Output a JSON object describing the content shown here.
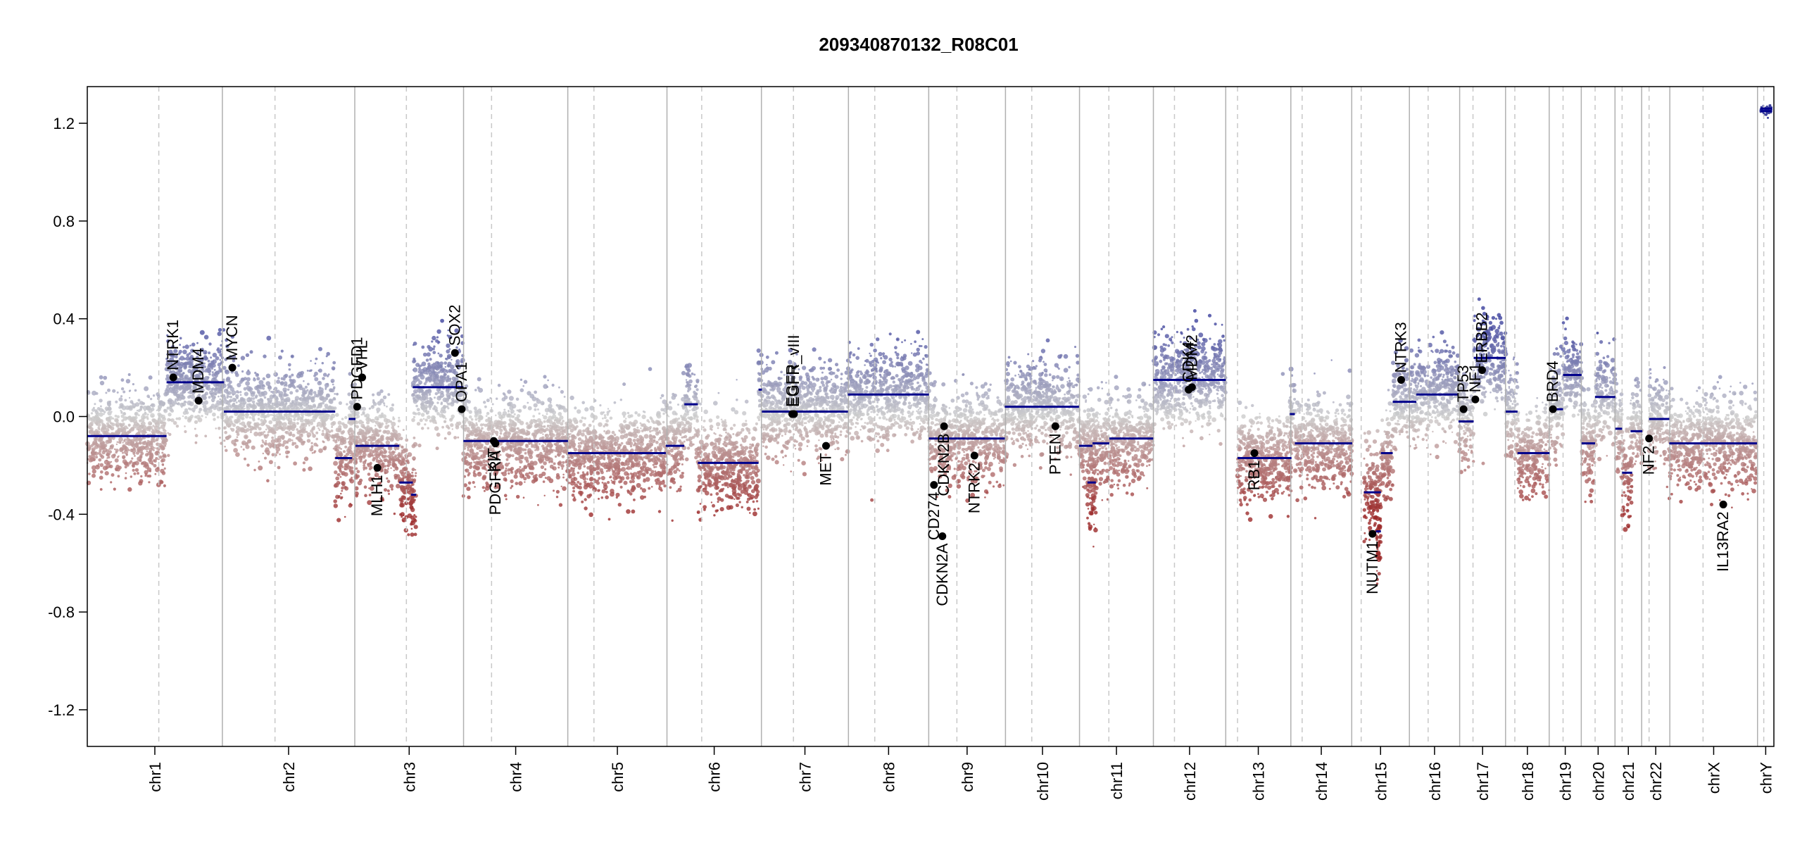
{
  "chart_data": {
    "type": "scatter",
    "title": "209340870132_R08C01",
    "xlabel": "",
    "ylabel": "",
    "ylim": [
      -1.35,
      1.35
    ],
    "yticks": [
      {
        "value": 1.2,
        "label": "1.2"
      },
      {
        "value": 0.8,
        "label": "0.8"
      },
      {
        "value": 0.4,
        "label": "0.4"
      },
      {
        "value": 0.0,
        "label": "0.0"
      },
      {
        "value": -0.4,
        "label": "-0.4"
      },
      {
        "value": -0.8,
        "label": "-0.8"
      },
      {
        "value": -1.2,
        "label": "-1.2"
      }
    ],
    "xlim": [
      0,
      1000
    ],
    "chromosomes": [
      {
        "name": "chr1",
        "start": 0,
        "end": 80.1,
        "centromere": 42.4
      },
      {
        "name": "chr2",
        "start": 80.1,
        "end": 158.6,
        "centromere": 111.3
      },
      {
        "name": "chr3",
        "start": 158.6,
        "end": 223.1,
        "centromere": 189.2
      },
      {
        "name": "chr4",
        "start": 223.1,
        "end": 284.9,
        "centromere": 239.7
      },
      {
        "name": "chr5",
        "start": 284.9,
        "end": 343.7,
        "centromere": 300.4
      },
      {
        "name": "chr6",
        "start": 343.7,
        "end": 399.7,
        "centromere": 364.3
      },
      {
        "name": "chr7",
        "start": 399.7,
        "end": 451.3,
        "centromere": 418.7
      },
      {
        "name": "chr8",
        "start": 451.3,
        "end": 498.9,
        "centromere": 466.9
      },
      {
        "name": "chr9",
        "start": 498.9,
        "end": 544.4,
        "centromere": 515.6
      },
      {
        "name": "chr10",
        "start": 544.4,
        "end": 588.3,
        "centromere": 560.0
      },
      {
        "name": "chr11",
        "start": 588.3,
        "end": 632.1,
        "centromere": 605.7
      },
      {
        "name": "chr12",
        "start": 632.1,
        "end": 675.0,
        "centromere": 644.6
      },
      {
        "name": "chr13",
        "start": 675.0,
        "end": 713.6,
        "centromere": 682.0
      },
      {
        "name": "chr14",
        "start": 713.6,
        "end": 749.7,
        "centromere": 720.3
      },
      {
        "name": "chr15",
        "start": 749.7,
        "end": 783.9,
        "centromere": 755.3
      },
      {
        "name": "chr16",
        "start": 783.9,
        "end": 813.7,
        "centromere": 795.0
      },
      {
        "name": "chr17",
        "start": 813.7,
        "end": 840.9,
        "centromere": 821.6
      },
      {
        "name": "chr18",
        "start": 840.9,
        "end": 866.8,
        "centromere": 846.4
      },
      {
        "name": "chr19",
        "start": 866.8,
        "end": 885.8,
        "centromere": 875.0
      },
      {
        "name": "chr20",
        "start": 885.8,
        "end": 905.8,
        "centromere": 894.0
      },
      {
        "name": "chr21",
        "start": 905.8,
        "end": 921.6,
        "centromere": 910.0
      },
      {
        "name": "chr22",
        "start": 921.6,
        "end": 938.3,
        "centromere": 926.0
      },
      {
        "name": "chrX",
        "start": 938.3,
        "end": 990.3,
        "centromere": 958.0
      },
      {
        "name": "chrY",
        "start": 990.3,
        "end": 1000,
        "centromere": 994.0
      }
    ],
    "segments": [
      {
        "x0": 0,
        "x1": 47,
        "y": -0.08
      },
      {
        "x0": 47,
        "x1": 81,
        "y": 0.14
      },
      {
        "x0": 81,
        "x1": 147,
        "y": 0.02
      },
      {
        "x0": 147,
        "x1": 157,
        "y": -0.17
      },
      {
        "x0": 155,
        "x1": 159,
        "y": -0.01
      },
      {
        "x0": 159,
        "x1": 185,
        "y": -0.12
      },
      {
        "x0": 185,
        "x1": 193,
        "y": -0.27
      },
      {
        "x0": 192,
        "x1": 195,
        "y": -0.32
      },
      {
        "x0": 193,
        "x1": 223,
        "y": 0.12
      },
      {
        "x0": 223,
        "x1": 285,
        "y": -0.1
      },
      {
        "x0": 285,
        "x1": 343,
        "y": -0.15
      },
      {
        "x0": 343,
        "x1": 354,
        "y": -0.12
      },
      {
        "x0": 354,
        "x1": 362,
        "y": 0.05
      },
      {
        "x0": 362,
        "x1": 398,
        "y": -0.19
      },
      {
        "x0": 398,
        "x1": 400,
        "y": 0.11
      },
      {
        "x0": 400,
        "x1": 451,
        "y": 0.02
      },
      {
        "x0": 451,
        "x1": 499,
        "y": 0.09
      },
      {
        "x0": 499,
        "x1": 516,
        "y": -0.09
      },
      {
        "x0": 516,
        "x1": 544,
        "y": -0.09
      },
      {
        "x0": 544,
        "x1": 588,
        "y": 0.04
      },
      {
        "x0": 588,
        "x1": 596,
        "y": -0.12
      },
      {
        "x0": 593,
        "x1": 598,
        "y": -0.27
      },
      {
        "x0": 596,
        "x1": 606,
        "y": -0.11
      },
      {
        "x0": 606,
        "x1": 632,
        "y": -0.09
      },
      {
        "x0": 632,
        "x1": 675,
        "y": 0.15
      },
      {
        "x0": 682,
        "x1": 714,
        "y": -0.17
      },
      {
        "x0": 713,
        "x1": 716,
        "y": 0.01
      },
      {
        "x0": 716,
        "x1": 750,
        "y": -0.11
      },
      {
        "x0": 757,
        "x1": 767,
        "y": -0.31
      },
      {
        "x0": 767,
        "x1": 774,
        "y": -0.15
      },
      {
        "x0": 764,
        "x1": 767,
        "y": -0.47
      },
      {
        "x0": 774,
        "x1": 788,
        "y": 0.06
      },
      {
        "x0": 788,
        "x1": 813,
        "y": 0.09
      },
      {
        "x0": 813,
        "x1": 822,
        "y": -0.02
      },
      {
        "x0": 822,
        "x1": 841,
        "y": 0.24
      },
      {
        "x0": 841,
        "x1": 848,
        "y": 0.02
      },
      {
        "x0": 848,
        "x1": 867,
        "y": -0.15
      },
      {
        "x0": 867,
        "x1": 875,
        "y": 0.03
      },
      {
        "x0": 875,
        "x1": 886,
        "y": 0.17
      },
      {
        "x0": 886,
        "x1": 894,
        "y": -0.11
      },
      {
        "x0": 894,
        "x1": 906,
        "y": 0.08
      },
      {
        "x0": 906,
        "x1": 910,
        "y": -0.05
      },
      {
        "x0": 910,
        "x1": 916,
        "y": -0.23
      },
      {
        "x0": 915,
        "x1": 922,
        "y": -0.06
      },
      {
        "x0": 926,
        "x1": 938,
        "y": -0.01
      },
      {
        "x0": 938,
        "x1": 990,
        "y": -0.11
      },
      {
        "x0": 992,
        "x1": 999,
        "y": 1.26
      },
      {
        "x0": 992,
        "x1": 999,
        "y": 1.25
      }
    ],
    "genes": [
      {
        "name": "NTRK1",
        "x": 51.0,
        "y": 0.16,
        "dir": "up"
      },
      {
        "name": "MDM4",
        "x": 66.0,
        "y": 0.065,
        "dir": "up"
      },
      {
        "name": "MYCN",
        "x": 86.0,
        "y": 0.2,
        "dir": "up"
      },
      {
        "name": "PDGFD1",
        "x": 160.0,
        "y": 0.04,
        "dir": "up"
      },
      {
        "name": "VHL",
        "x": 163.0,
        "y": 0.16,
        "dir": "up"
      },
      {
        "name": "MLH1",
        "x": 172.0,
        "y": -0.21,
        "dir": "down"
      },
      {
        "name": "SOX2",
        "x": 218.0,
        "y": 0.26,
        "dir": "up"
      },
      {
        "name": "OPA1",
        "x": 222.0,
        "y": 0.03,
        "dir": "up"
      },
      {
        "name": "KIT",
        "x": 241.0,
        "y": -0.1,
        "dir": "down"
      },
      {
        "name": "PDGFRA",
        "x": 242.0,
        "y": -0.11,
        "dir": "down"
      },
      {
        "name": "EGFR",
        "x": 418.0,
        "y": 0.01,
        "dir": "up"
      },
      {
        "name": "EGFR_vIII",
        "x": 419.0,
        "y": 0.01,
        "dir": "up"
      },
      {
        "name": "MET",
        "x": 438.0,
        "y": -0.12,
        "dir": "down"
      },
      {
        "name": "CDKN2A",
        "x": 507.0,
        "y": -0.49,
        "dir": "down"
      },
      {
        "name": "CDKN2B",
        "x": 508.0,
        "y": -0.04,
        "dir": "down"
      },
      {
        "name": "CD274",
        "x": 502.0,
        "y": -0.28,
        "dir": "down"
      },
      {
        "name": "NTRK2",
        "x": 526.0,
        "y": -0.16,
        "dir": "down"
      },
      {
        "name": "PTEN",
        "x": 574.0,
        "y": -0.04,
        "dir": "down"
      },
      {
        "name": "CDK4",
        "x": 653.0,
        "y": 0.11,
        "dir": "up"
      },
      {
        "name": "MDM2",
        "x": 655.0,
        "y": 0.12,
        "dir": "up"
      },
      {
        "name": "RB1",
        "x": 692.0,
        "y": -0.15,
        "dir": "down"
      },
      {
        "name": "NUTM1",
        "x": 762.0,
        "y": -0.48,
        "dir": "down"
      },
      {
        "name": "NTRK3",
        "x": 779.0,
        "y": 0.15,
        "dir": "up"
      },
      {
        "name": "TP53",
        "x": 816.0,
        "y": 0.03,
        "dir": "up"
      },
      {
        "name": "NF1",
        "x": 823.0,
        "y": 0.07,
        "dir": "up"
      },
      {
        "name": "ERBB2",
        "x": 827.0,
        "y": 0.19,
        "dir": "up"
      },
      {
        "name": "BRD4",
        "x": 869.0,
        "y": 0.03,
        "dir": "up"
      },
      {
        "name": "NF2",
        "x": 926.0,
        "y": -0.09,
        "dir": "down"
      },
      {
        "name": "IL13RA2",
        "x": 970.0,
        "y": -0.36,
        "dir": "down"
      }
    ],
    "colors": {
      "gain": "#3a3f9c",
      "neutral": "#cccccc",
      "loss": "#9c2a2a",
      "segment": "#00008b",
      "chrom_line": "#b0b0b0",
      "centromere_line": "#c8c8c8",
      "gene_dot": "#000000"
    }
  }
}
